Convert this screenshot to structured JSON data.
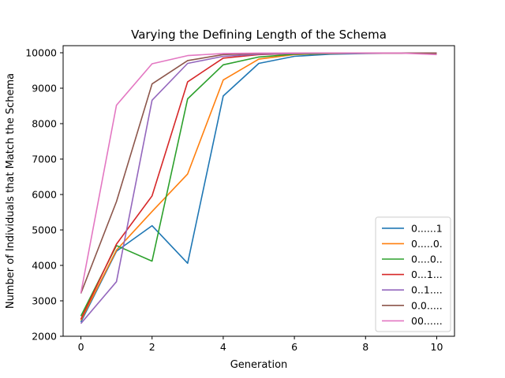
{
  "chart_data": {
    "type": "line",
    "title": "Varying the Defining Length of the Schema",
    "xlabel": "Generation",
    "ylabel": "Number of Individuals that Match the Schema",
    "xlim": [
      -0.5,
      10.5
    ],
    "ylim": [
      2000,
      10200
    ],
    "xticks": [
      0,
      2,
      4,
      6,
      8,
      10
    ],
    "yticks": [
      2000,
      3000,
      4000,
      5000,
      6000,
      7000,
      8000,
      9000,
      10000
    ],
    "grid": false,
    "legend_position": "lower-right",
    "x": [
      0,
      1,
      2,
      3,
      4,
      5,
      6,
      7,
      8,
      9,
      10
    ],
    "series": [
      {
        "name": "0......1",
        "color": "#1f77b4",
        "values": [
          2400,
          4400,
          5120,
          4060,
          8780,
          9700,
          9900,
          9960,
          9980,
          9990,
          9990
        ]
      },
      {
        "name": "0.....0.",
        "color": "#ff7f0e",
        "values": [
          2450,
          4430,
          5520,
          6580,
          9230,
          9820,
          9950,
          9980,
          9990,
          9990,
          9990
        ]
      },
      {
        "name": "0....0..",
        "color": "#2ca02c",
        "values": [
          2570,
          4560,
          4120,
          8700,
          9660,
          9880,
          9960,
          9980,
          9990,
          9990,
          9990
        ]
      },
      {
        "name": "0...1...",
        "color": "#d62728",
        "values": [
          2480,
          4600,
          5960,
          9180,
          9850,
          9950,
          9980,
          9990,
          9990,
          9990,
          9990
        ]
      },
      {
        "name": "0..1....",
        "color": "#9467bd",
        "values": [
          2360,
          3540,
          8660,
          9700,
          9900,
          9960,
          9980,
          9990,
          9990,
          9990,
          9990
        ]
      },
      {
        "name": "0.0.....",
        "color": "#8c564b",
        "values": [
          3210,
          5800,
          9120,
          9780,
          9950,
          9980,
          9990,
          9990,
          9990,
          9990,
          9990
        ]
      },
      {
        "name": "00......",
        "color": "#e377c2",
        "values": [
          3220,
          8520,
          9690,
          9920,
          9980,
          9990,
          9990,
          9990,
          9990,
          9990,
          9950
        ]
      }
    ]
  }
}
